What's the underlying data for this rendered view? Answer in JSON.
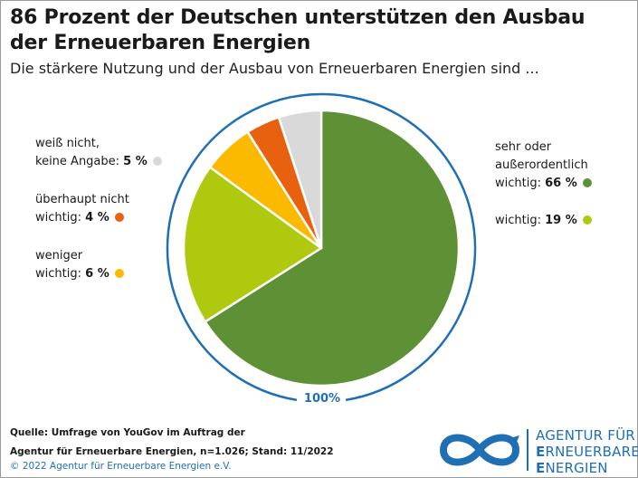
{
  "title": "86 Prozent der Deutschen unterstützen den Ausbau der Erneuerbaren Energien",
  "subtitle": "Die stärkere Nutzung und der Ausbau von Erneuerbaren Energien sind ...",
  "chart_data": {
    "type": "pie",
    "title": "86 Prozent der Deutschen unterstützen den Ausbau der Erneuerbaren Energien",
    "subtitle": "Die stärkere Nutzung und der Ausbau von Erneuerbaren Energien sind ...",
    "total_label": "100%",
    "categories": [
      "sehr oder außerordentlich wichtig",
      "wichtig",
      "weniger wichtig",
      "überhaupt nicht wichtig",
      "weiß nicht, keine Angabe"
    ],
    "values": [
      66,
      19,
      6,
      4,
      5
    ],
    "colors": [
      "#5e9135",
      "#aec90e",
      "#fbb900",
      "#e8610f",
      "#d9d9d9"
    ]
  },
  "labels": {
    "sehr_line1": "sehr oder",
    "sehr_line2": "außerordentlich",
    "sehr_line3": "wichtig:",
    "sehr_value": "66 %",
    "wichtig_line1": "wichtig:",
    "wichtig_value": "19 %",
    "weniger_line1": "weniger",
    "weniger_line2": "wichtig:",
    "weniger_value": "6 %",
    "ueberhaupt_line1": "überhaupt nicht",
    "ueberhaupt_line2": "wichtig:",
    "ueberhaupt_value": "4 %",
    "weiss_line1": "weiß nicht,",
    "weiss_line2": "keine Angabe:",
    "weiss_value": "5 %"
  },
  "source": {
    "line1": "Quelle: Umfrage von YouGov im Auftrag der",
    "line2": "Agentur für Erneuerbare Energien, n=1.026; Stand: 11/2022"
  },
  "copyright": "© 2022 Agentur für Erneuerbare Energien e.V.",
  "logo": {
    "line1": "AGENTUR FÜR",
    "line2_first": "E",
    "line2_rest": "RNEUERBARE",
    "line3_first": "E",
    "line3_rest": "NERGIEN",
    "color": "#1f6fb5"
  }
}
